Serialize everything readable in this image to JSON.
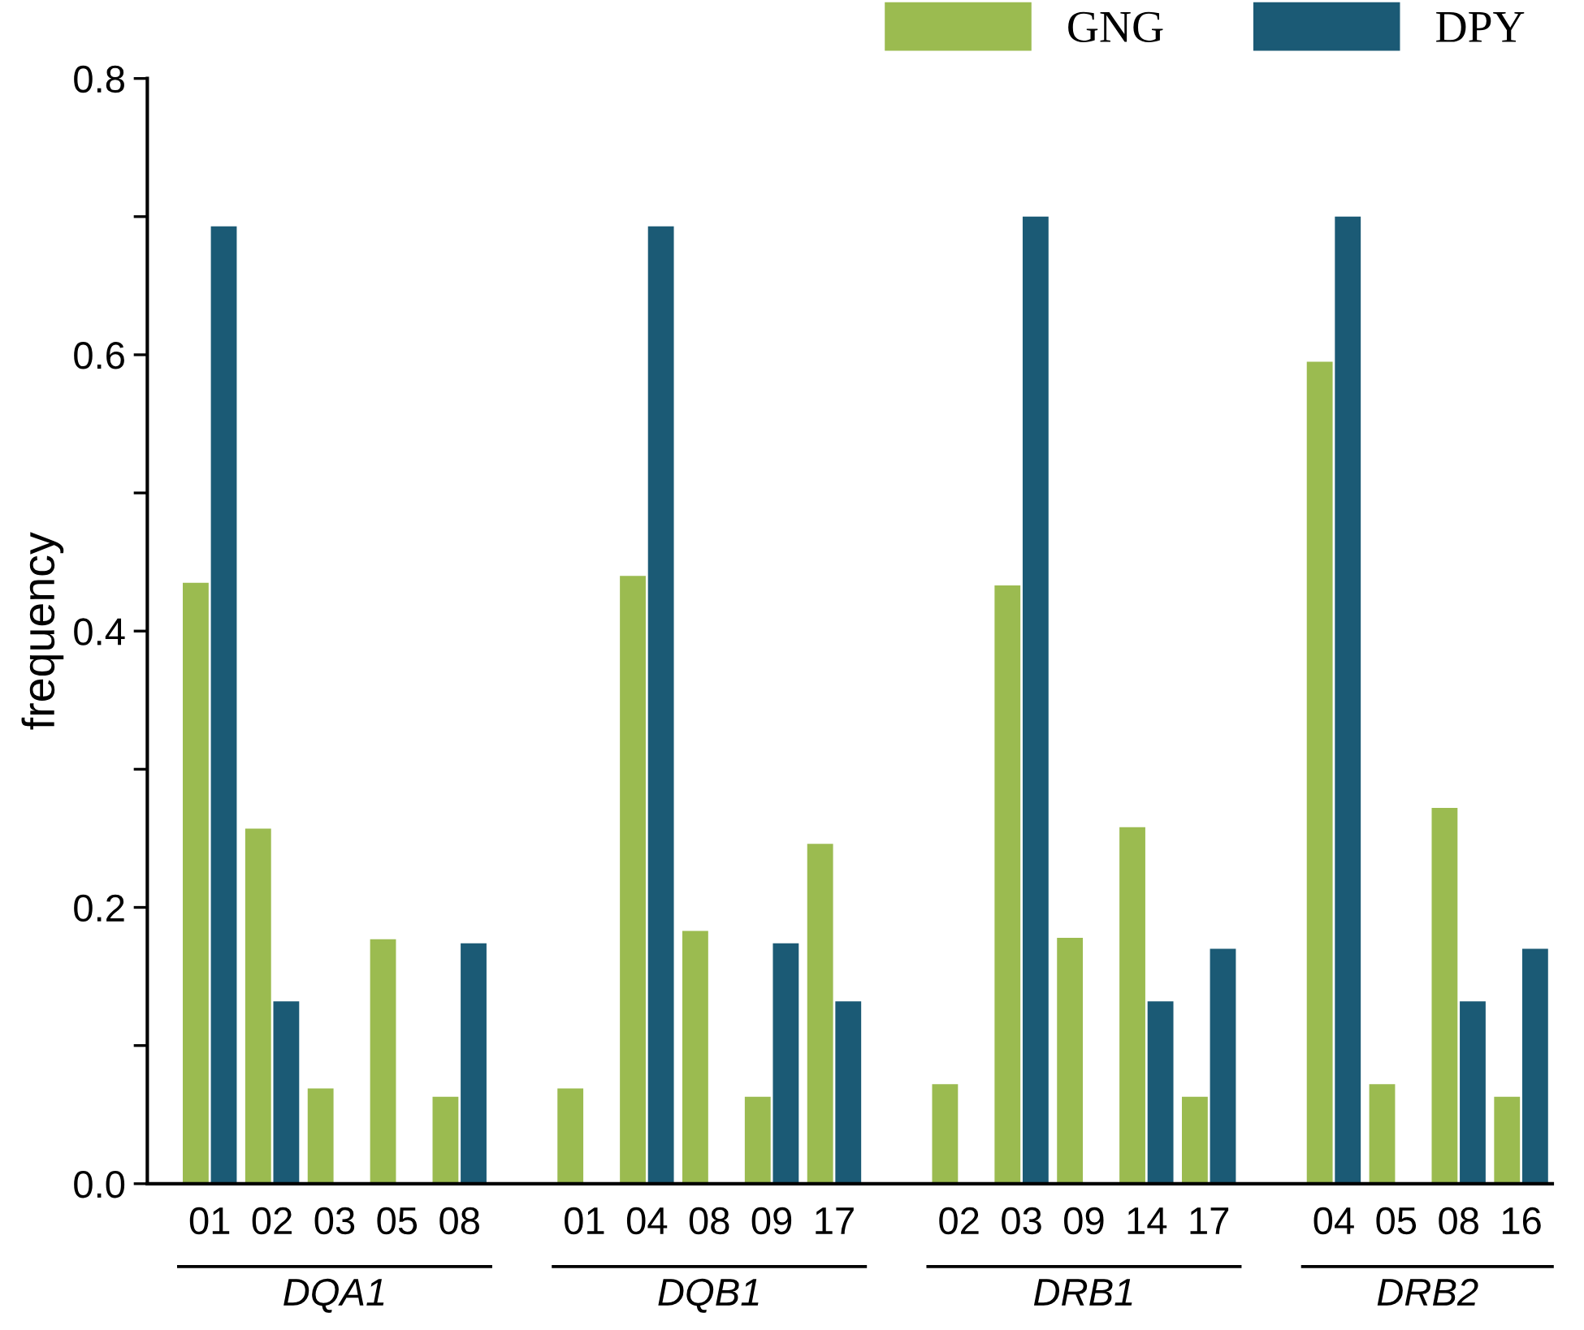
{
  "chart_data": {
    "type": "bar",
    "ylabel": "frequency",
    "categories": [
      "01",
      "02",
      "03",
      "05",
      "08",
      null,
      "01",
      "04",
      "08",
      "09",
      "17",
      null,
      "02",
      "03",
      "09",
      "14",
      "17",
      null,
      "04",
      "05",
      "08",
      "16"
    ],
    "series": [
      {
        "name": "GNG",
        "color": "#9bbb50",
        "values": [
          0.435,
          0.257,
          0.069,
          0.177,
          0.063,
          null,
          0.069,
          0.44,
          0.183,
          0.063,
          0.246,
          null,
          0.072,
          0.433,
          0.178,
          0.258,
          0.063,
          null,
          0.595,
          0.072,
          0.272,
          0.063
        ]
      },
      {
        "name": "DPY",
        "color": "#1b5a75",
        "values": [
          0.693,
          0.132,
          null,
          null,
          0.174,
          null,
          null,
          0.693,
          null,
          0.174,
          0.132,
          null,
          null,
          0.7,
          null,
          0.132,
          0.17,
          null,
          0.7,
          null,
          0.132,
          0.17
        ]
      }
    ],
    "annotations": [
      "DQA1",
      "DQB1",
      "DRB1",
      "DRB2"
    ],
    "ylim": [
      0,
      0.8
    ],
    "yticks": [
      {
        "value": 0,
        "label": "0.0"
      },
      {
        "value": 0.1,
        "label": null
      },
      0.2,
      {
        "value": 0.3,
        "label": null
      },
      0.4,
      {
        "value": 0.5,
        "label": null
      },
      0.6,
      {
        "value": 0.7,
        "label": null
      },
      0.8
    ],
    "grid": false,
    "legend": "top right"
  }
}
